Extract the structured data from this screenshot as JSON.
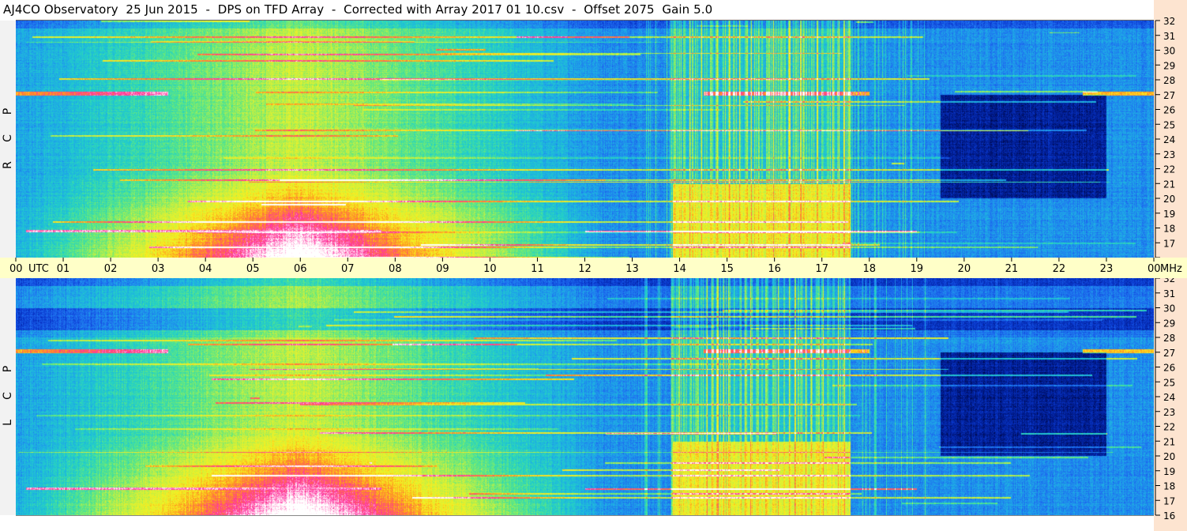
{
  "title": "AJ4CO Observatory  25 Jun 2015  -  DPS on TFD Array  -  Corrected with Array 2017 01 10.csv  -  Offset 2075  Gain 5.0",
  "panels": [
    {
      "id": "rcp",
      "label_letters": [
        "P",
        "C",
        "R"
      ]
    },
    {
      "id": "lcp",
      "label_letters": [
        "P",
        "C",
        "L"
      ]
    }
  ],
  "chart_data": {
    "type": "heatmap",
    "title": "AJ4CO Observatory  25 Jun 2015  -  DPS on TFD Array  -  Corrected with Array 2017 01 10.csv  -  Offset 2075  Gain 5.0",
    "x_axis": {
      "label": "UTC",
      "range": [
        0,
        24
      ],
      "tick_labels": [
        "00",
        "01",
        "02",
        "03",
        "04",
        "05",
        "06",
        "07",
        "08",
        "09",
        "10",
        "11",
        "12",
        "13",
        "14",
        "15",
        "16",
        "17",
        "18",
        "19",
        "20",
        "21",
        "22",
        "23",
        "00"
      ]
    },
    "y_axis": {
      "label": "MHz",
      "range": [
        16,
        32
      ],
      "tick_labels": [
        "16",
        "17",
        "18",
        "19",
        "20",
        "21",
        "22",
        "23",
        "24",
        "25",
        "26",
        "27",
        "28",
        "29",
        "30",
        "31",
        "32"
      ]
    },
    "series": [
      {
        "name": "RCP",
        "panel": "top"
      },
      {
        "name": "LCP",
        "panel": "bottom"
      }
    ],
    "colormap": [
      "#000020",
      "#001a8c",
      "#0a3ad0",
      "#1e6cf0",
      "#1ea8e8",
      "#22d0c8",
      "#60e880",
      "#c8f040",
      "#f8f020",
      "#ff9020",
      "#ff30a0",
      "#ffffff"
    ]
  }
}
